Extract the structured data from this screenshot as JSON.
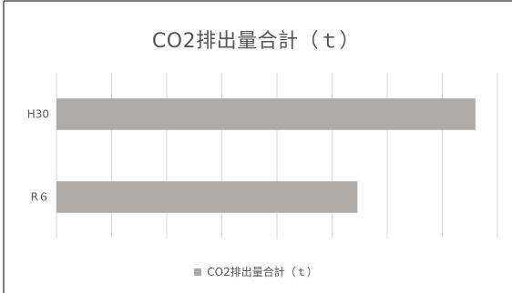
{
  "chart_data": {
    "type": "bar",
    "orientation": "horizontal",
    "title": "CO2排出量合計（ｔ）",
    "categories": [
      "H30",
      "R６"
    ],
    "series": [
      {
        "name": "CO2排出量合計（ｔ）",
        "values": [
          380,
          273
        ],
        "color": "#afaaa6"
      }
    ],
    "xlim": [
      0,
      400
    ],
    "x_gridlines": 8,
    "show_x_tick_labels": false,
    "grid": true,
    "legend": "bottom",
    "frame_color": "#000000"
  }
}
